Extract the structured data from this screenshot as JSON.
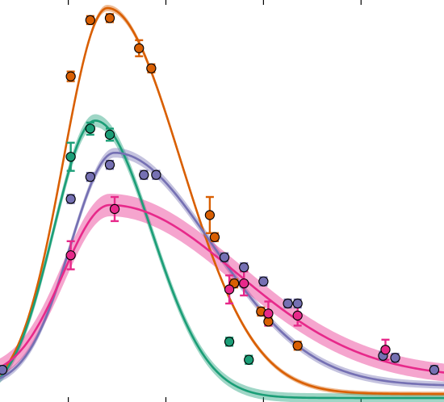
{
  "chart_data": {
    "type": "scatter",
    "title": "",
    "xlabel": "",
    "ylabel": "",
    "xlim": [
      0,
      9.1
    ],
    "ylim": [
      0,
      1.0
    ],
    "x_ticks": [
      1.4,
      3.4,
      5.4,
      7.4
    ],
    "tick_labels_shown": false,
    "grid": false,
    "legend": "none",
    "series": [
      {
        "color": "#d95f02",
        "fit": {
          "amplitude": 0.96,
          "peak_x": 2.2,
          "width_left": 0.9,
          "width_right": 1.5,
          "baseline": 0.02
        },
        "band_halfwidth": 0.008,
        "points": [
          {
            "x": 1.45,
            "y": 0.81,
            "err": 0.012
          },
          {
            "x": 1.85,
            "y": 0.95,
            "err": 0.01
          },
          {
            "x": 2.25,
            "y": 0.955,
            "err": 0.01
          },
          {
            "x": 2.85,
            "y": 0.88,
            "err": 0.02
          },
          {
            "x": 3.1,
            "y": 0.83,
            "err": 0.01
          },
          {
            "x": 4.3,
            "y": 0.465,
            "err": 0.045
          },
          {
            "x": 4.4,
            "y": 0.41,
            "err": 0.01
          },
          {
            "x": 4.8,
            "y": 0.295,
            "err": 0.01
          },
          {
            "x": 5.35,
            "y": 0.225,
            "err": 0.01
          },
          {
            "x": 5.5,
            "y": 0.2,
            "err": 0.01
          },
          {
            "x": 6.1,
            "y": 0.14,
            "err": 0.01
          }
        ]
      },
      {
        "color": "#1b9e77",
        "fit": {
          "amplitude": 0.69,
          "peak_x": 1.95,
          "width_left": 0.85,
          "width_right": 1.15,
          "baseline": 0.01
        },
        "band_halfwidth": 0.016,
        "points": [
          {
            "x": 1.45,
            "y": 0.61,
            "err": 0.035
          },
          {
            "x": 1.85,
            "y": 0.68,
            "err": 0.015
          },
          {
            "x": 2.25,
            "y": 0.665,
            "err": 0.015
          },
          {
            "x": 4.7,
            "y": 0.15,
            "err": 0.01
          },
          {
            "x": 5.1,
            "y": 0.105,
            "err": 0.01
          }
        ]
      },
      {
        "color": "#7570b3",
        "fit": {
          "amplitude": 0.58,
          "peak_x": 2.35,
          "width_left": 0.9,
          "width_right": 2.0,
          "baseline": 0.04
        },
        "band_halfwidth": 0.012,
        "points": [
          {
            "x": 0.05,
            "y": 0.08,
            "err": 0.01
          },
          {
            "x": 1.45,
            "y": 0.505,
            "err": 0.01
          },
          {
            "x": 1.85,
            "y": 0.56,
            "err": 0.01
          },
          {
            "x": 2.25,
            "y": 0.59,
            "err": 0.01
          },
          {
            "x": 2.95,
            "y": 0.565,
            "err": 0.01
          },
          {
            "x": 3.2,
            "y": 0.565,
            "err": 0.01
          },
          {
            "x": 4.6,
            "y": 0.36,
            "err": 0.01
          },
          {
            "x": 5.0,
            "y": 0.335,
            "err": 0.01
          },
          {
            "x": 5.4,
            "y": 0.3,
            "err": 0.01
          },
          {
            "x": 5.9,
            "y": 0.245,
            "err": 0.01
          },
          {
            "x": 6.1,
            "y": 0.245,
            "err": 0.01
          },
          {
            "x": 7.85,
            "y": 0.115,
            "err": 0.01
          },
          {
            "x": 8.1,
            "y": 0.11,
            "err": 0.01
          },
          {
            "x": 8.9,
            "y": 0.08,
            "err": 0.01
          }
        ]
      },
      {
        "color": "#e7298a",
        "fit": {
          "amplitude": 0.43,
          "peak_x": 2.25,
          "width_left": 0.95,
          "width_right": 2.6,
          "baseline": 0.06
        },
        "band_halfwidth": 0.028,
        "points": [
          {
            "x": 1.45,
            "y": 0.365,
            "err": 0.035
          },
          {
            "x": 2.35,
            "y": 0.48,
            "err": 0.03
          },
          {
            "x": 4.7,
            "y": 0.28,
            "err": 0.035
          },
          {
            "x": 5.0,
            "y": 0.295,
            "err": 0.03
          },
          {
            "x": 5.5,
            "y": 0.22,
            "err": 0.03
          },
          {
            "x": 6.1,
            "y": 0.215,
            "err": 0.025
          },
          {
            "x": 7.9,
            "y": 0.13,
            "err": 0.025
          }
        ]
      }
    ]
  }
}
